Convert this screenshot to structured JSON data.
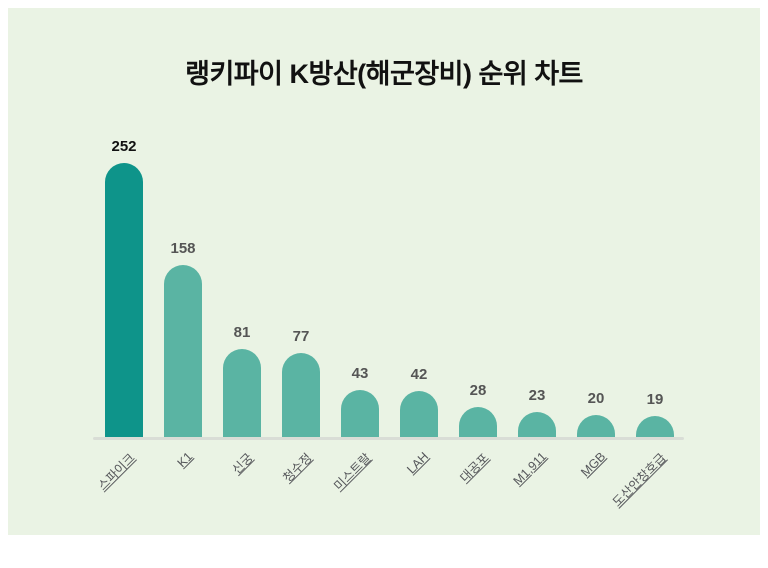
{
  "chart_data": {
    "type": "bar",
    "title": "랭키파이 K방산(해군장비) 순위 차트",
    "categories": [
      "스파이크",
      "K1",
      "신궁",
      "청수정",
      "미스트랄",
      "LAH",
      "대공포",
      "M1,911",
      "MGB",
      "도산안창호급"
    ],
    "values": [
      252,
      158,
      81,
      77,
      43,
      42,
      28,
      23,
      20,
      19
    ],
    "xlabel": "",
    "ylabel": "",
    "ylim": [
      0,
      270
    ],
    "grid": false,
    "legend_position": "none",
    "data_labels_shown": true,
    "category_labels_rotation_deg": -45
  },
  "colors": {
    "page_border": "#ffffff",
    "panel_bg": "#eaf3e4",
    "bar_highlight": "#0e948a",
    "bar_default": "#5ab4a3",
    "axis_line": "#d9ddd6",
    "title_text": "#111111",
    "value_highlight": "#111111",
    "value_default": "#555555",
    "category_label": "#55565a"
  }
}
